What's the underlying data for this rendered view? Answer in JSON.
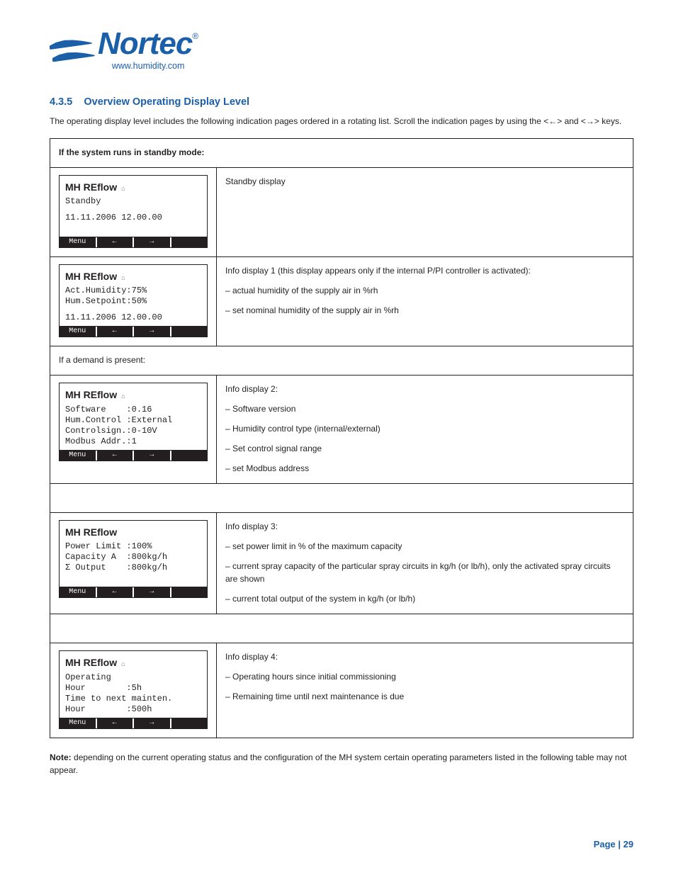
{
  "logo": {
    "name": "Nortec",
    "url": "www.humidity.com"
  },
  "section": {
    "number": "4.3.5",
    "title": "Overview Operating Display Level",
    "desc": "The operating display level includes the following indication pages ordered in a rotating list. Scroll the indication pages by using the <←> and <→> keys."
  },
  "note": {
    "label": "Note:",
    "body": "depending on the current operating status and the configuration of the MH system certain operating parameters listed in the following table may not appear."
  },
  "table": {
    "head": "If the system runs in standby mode:",
    "rows": [
      {
        "lcd": {
          "title": "MH REflow",
          "lines": [
            "Standby"
          ],
          "timestamp": "11.11.2006 12.00.00",
          "show_time": true,
          "show_icon": true
        },
        "desc": [
          "Standby display"
        ]
      },
      {
        "lcd": {
          "title": "MH REflow",
          "lines": [
            "Act.Humidity:75%",
            "Hum.Setpoint:50%"
          ],
          "timestamp": "11.11.2006 12.00.00",
          "show_time": true,
          "show_icon": true
        },
        "desc": [
          "Info display 1 (this display appears only if the internal P/PI controller is activated):",
          "– actual humidity of the supply air in %rh",
          "– set nominal humidity of the supply air in %rh"
        ]
      }
    ],
    "subhead": "If a demand is present:",
    "rows2": [
      {
        "lcd": {
          "title": "MH REflow",
          "lines": [
            "Software    :0.16",
            "Hum.Control :External",
            "Controlsign.:0-10V",
            "Modbus Addr.:1"
          ],
          "timestamp": "",
          "show_time": false,
          "show_icon": true
        },
        "desc": [
          "Info display 2:",
          "– Software version",
          "– Humidity control type (internal/external)",
          "– Set control signal range",
          "– set Modbus address"
        ]
      }
    ],
    "rows3": [
      {
        "lcd": {
          "title": "MH  REflow",
          "lines": [
            "Power Limit :100%",
            "Capacity A  :800kg/h",
            "Σ Output    :800kg/h"
          ],
          "timestamp": "",
          "show_time": false,
          "show_icon": false,
          "spacer_after": true
        },
        "desc": [
          "Info display 3:",
          "– set power limit in % of the maximum capacity",
          "– current spray capacity of the particular spray circuits in kg/h (or lb/h), only the activated spray circuits are shown",
          "– current total output of the system in kg/h (or lb/h)"
        ]
      }
    ],
    "rows4": [
      {
        "lcd": {
          "title": "MH REflow",
          "lines": [
            "Operating",
            "Hour        :5h",
            "Time to next mainten.",
            "Hour        :500h"
          ],
          "timestamp": "",
          "show_time": false,
          "show_icon": true
        },
        "desc": [
          "Info display 4:",
          "– Operating hours since initial commissioning",
          "– Remaining time until next maintenance is due"
        ]
      }
    ]
  },
  "buttons": {
    "menu": "Menu",
    "left": "←",
    "right": "→"
  },
  "pageLabel": "Page | 29"
}
